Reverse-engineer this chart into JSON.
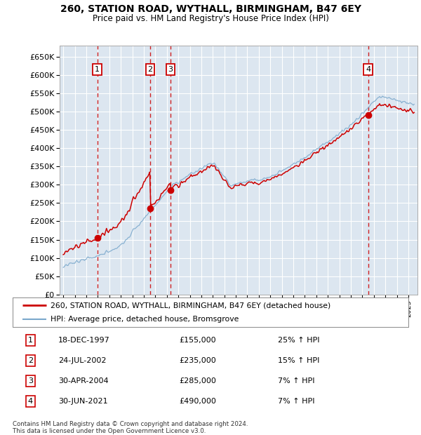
{
  "title1": "260, STATION ROAD, WYTHALL, BIRMINGHAM, B47 6EY",
  "title2": "Price paid vs. HM Land Registry's House Price Index (HPI)",
  "background_color": "#dce6f0",
  "fig_bg_color": "#ffffff",
  "ylim": [
    0,
    680000
  ],
  "yticks": [
    0,
    50000,
    100000,
    150000,
    200000,
    250000,
    300000,
    350000,
    400000,
    450000,
    500000,
    550000,
    600000,
    650000
  ],
  "ytick_labels": [
    "£0",
    "£50K",
    "£100K",
    "£150K",
    "£200K",
    "£250K",
    "£300K",
    "£350K",
    "£400K",
    "£450K",
    "£500K",
    "£550K",
    "£600K",
    "£650K"
  ],
  "purchases": [
    {
      "date_num": 1997.96,
      "price": 155000,
      "label": "1"
    },
    {
      "date_num": 2002.56,
      "price": 235000,
      "label": "2"
    },
    {
      "date_num": 2004.33,
      "price": 285000,
      "label": "3"
    },
    {
      "date_num": 2021.5,
      "price": 490000,
      "label": "4"
    }
  ],
  "legend_line1": "260, STATION ROAD, WYTHALL, BIRMINGHAM, B47 6EY (detached house)",
  "legend_line2": "HPI: Average price, detached house, Bromsgrove",
  "table_entries": [
    {
      "num": "1",
      "date": "18-DEC-1997",
      "price": "£155,000",
      "pct": "25% ↑ HPI"
    },
    {
      "num": "2",
      "date": "24-JUL-2002",
      "price": "£235,000",
      "pct": "15% ↑ HPI"
    },
    {
      "num": "3",
      "date": "30-APR-2004",
      "price": "£285,000",
      "pct": "7% ↑ HPI"
    },
    {
      "num": "4",
      "date": "30-JUN-2021",
      "price": "£490,000",
      "pct": "7% ↑ HPI"
    }
  ],
  "footer": "Contains HM Land Registry data © Crown copyright and database right 2024.\nThis data is licensed under the Open Government Licence v3.0.",
  "red_color": "#cc0000",
  "blue_color": "#7aa8cc",
  "grid_color": "#ffffff",
  "vline_color": "#cc0000"
}
